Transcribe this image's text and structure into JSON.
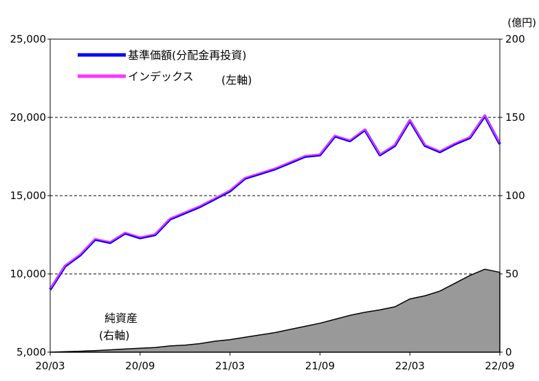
{
  "chart_data": {
    "type": "line",
    "unit_right": "(億円)",
    "x_ticks": [
      "20/03",
      "20/09",
      "21/03",
      "21/09",
      "22/03",
      "22/09"
    ],
    "left_axis": {
      "min": 5000,
      "max": 25000,
      "ticks": [
        "5,000",
        "10,000",
        "15,000",
        "20,000",
        "25,000"
      ]
    },
    "right_axis": {
      "min": 0,
      "max": 200,
      "ticks": [
        "0",
        "50",
        "100",
        "150",
        "200"
      ]
    },
    "grid": "horizontal dashed",
    "legend": {
      "placement": "top-left",
      "axis_note": "(左軸)",
      "entries": [
        {
          "label": "基準価額(分配金再投資)",
          "color": "#0000ff"
        },
        {
          "label": "インデックス",
          "color": "#ff33ff"
        }
      ]
    },
    "area_label": [
      "純資産",
      "(右軸)"
    ],
    "series": [
      {
        "name": "基準価額(分配金再投資)",
        "axis": "left",
        "color": "#0000ff",
        "x": [
          "2020-03",
          "2020-04",
          "2020-05",
          "2020-06",
          "2020-07",
          "2020-08",
          "2020-09",
          "2020-10",
          "2020-11",
          "2020-12",
          "2021-01",
          "2021-02",
          "2021-03",
          "2021-04",
          "2021-05",
          "2021-06",
          "2021-07",
          "2021-08",
          "2021-09",
          "2021-10",
          "2021-11",
          "2021-12",
          "2022-01",
          "2022-02",
          "2022-03",
          "2022-04",
          "2022-05",
          "2022-06",
          "2022-07",
          "2022-08",
          "2022-09"
        ],
        "values": [
          9000,
          10500,
          11200,
          12200,
          12000,
          12600,
          12300,
          12500,
          13500,
          13900,
          14300,
          14800,
          15300,
          16100,
          16400,
          16700,
          17100,
          17500,
          17600,
          18800,
          18500,
          19200,
          17600,
          18200,
          19800,
          18200,
          17800,
          18300,
          18700,
          20100,
          18300
        ]
      },
      {
        "name": "インデックス",
        "axis": "left",
        "color": "#ff33ff",
        "x": [
          "2020-03",
          "2020-04",
          "2020-05",
          "2020-06",
          "2020-07",
          "2020-08",
          "2020-09",
          "2020-10",
          "2020-11",
          "2020-12",
          "2021-01",
          "2021-02",
          "2021-03",
          "2021-04",
          "2021-05",
          "2021-06",
          "2021-07",
          "2021-08",
          "2021-09",
          "2021-10",
          "2021-11",
          "2021-12",
          "2022-01",
          "2022-02",
          "2022-03",
          "2022-04",
          "2022-05",
          "2022-06",
          "2022-07",
          "2022-08",
          "2022-09"
        ],
        "values": [
          9050,
          10550,
          11250,
          12250,
          12050,
          12650,
          12350,
          12550,
          13550,
          13950,
          14350,
          14850,
          15350,
          16150,
          16450,
          16750,
          17150,
          17550,
          17650,
          18850,
          18550,
          19250,
          17650,
          18250,
          19850,
          18250,
          17850,
          18350,
          18750,
          20150,
          18350
        ]
      },
      {
        "name": "純資産",
        "axis": "right",
        "type": "area",
        "color": "#999999",
        "x": [
          "2020-03",
          "2020-04",
          "2020-05",
          "2020-06",
          "2020-07",
          "2020-08",
          "2020-09",
          "2020-10",
          "2020-11",
          "2020-12",
          "2021-01",
          "2021-02",
          "2021-03",
          "2021-04",
          "2021-05",
          "2021-06",
          "2021-07",
          "2021-08",
          "2021-09",
          "2021-10",
          "2021-11",
          "2021-12",
          "2022-01",
          "2022-02",
          "2022-03",
          "2022-04",
          "2022-05",
          "2022-06",
          "2022-07",
          "2022-08",
          "2022-09"
        ],
        "values": [
          0,
          0.3,
          0.6,
          1,
          1.5,
          2,
          2.5,
          3,
          4,
          4.5,
          5.5,
          7,
          8,
          9.5,
          11,
          12.5,
          14.5,
          16.5,
          18.5,
          21,
          23.5,
          25.5,
          27,
          29,
          34,
          36,
          39,
          44,
          49,
          53,
          51
        ]
      }
    ]
  }
}
